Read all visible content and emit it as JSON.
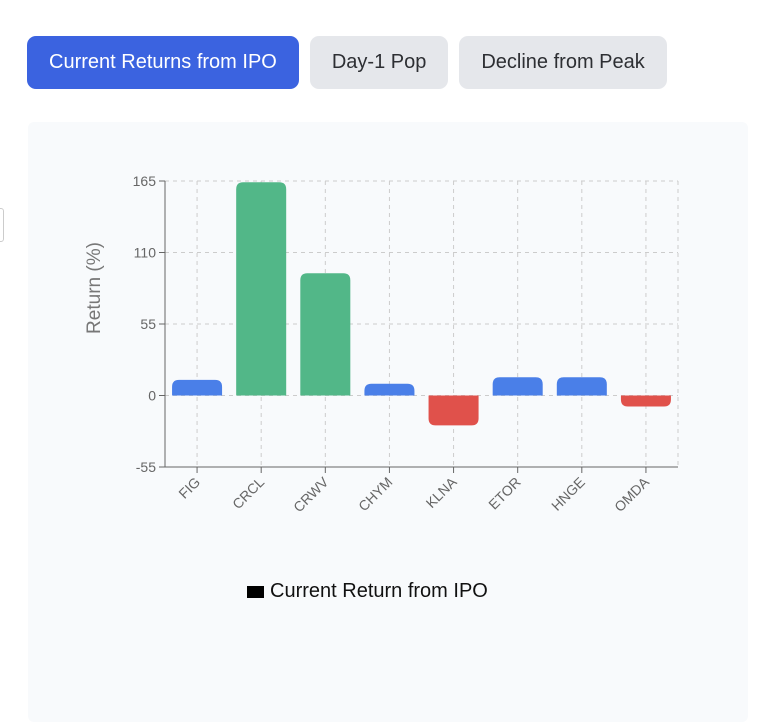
{
  "tabs": [
    {
      "label": "Current Returns from IPO",
      "active": true
    },
    {
      "label": "Day-1 Pop",
      "active": false
    },
    {
      "label": "Decline from Peak",
      "active": false
    }
  ],
  "chart_data": {
    "type": "bar",
    "categories": [
      "FIG",
      "CRCL",
      "CRWV",
      "CHYM",
      "KLNA",
      "ETOR",
      "HNGE",
      "OMDA"
    ],
    "values": [
      12,
      164,
      94,
      9,
      -23,
      14,
      14,
      -8.5
    ],
    "ylabel": "Return (%)",
    "xlabel": "",
    "ylim": [
      -55,
      165
    ],
    "yticks": [
      -55,
      0,
      55,
      110,
      165
    ],
    "grid": true,
    "legend": {
      "label": "Current Return from IPO",
      "position": "bottom"
    },
    "colors": {
      "positive_large": "#52b788",
      "positive": "#4a7fe8",
      "negative": "#e0514b"
    }
  }
}
